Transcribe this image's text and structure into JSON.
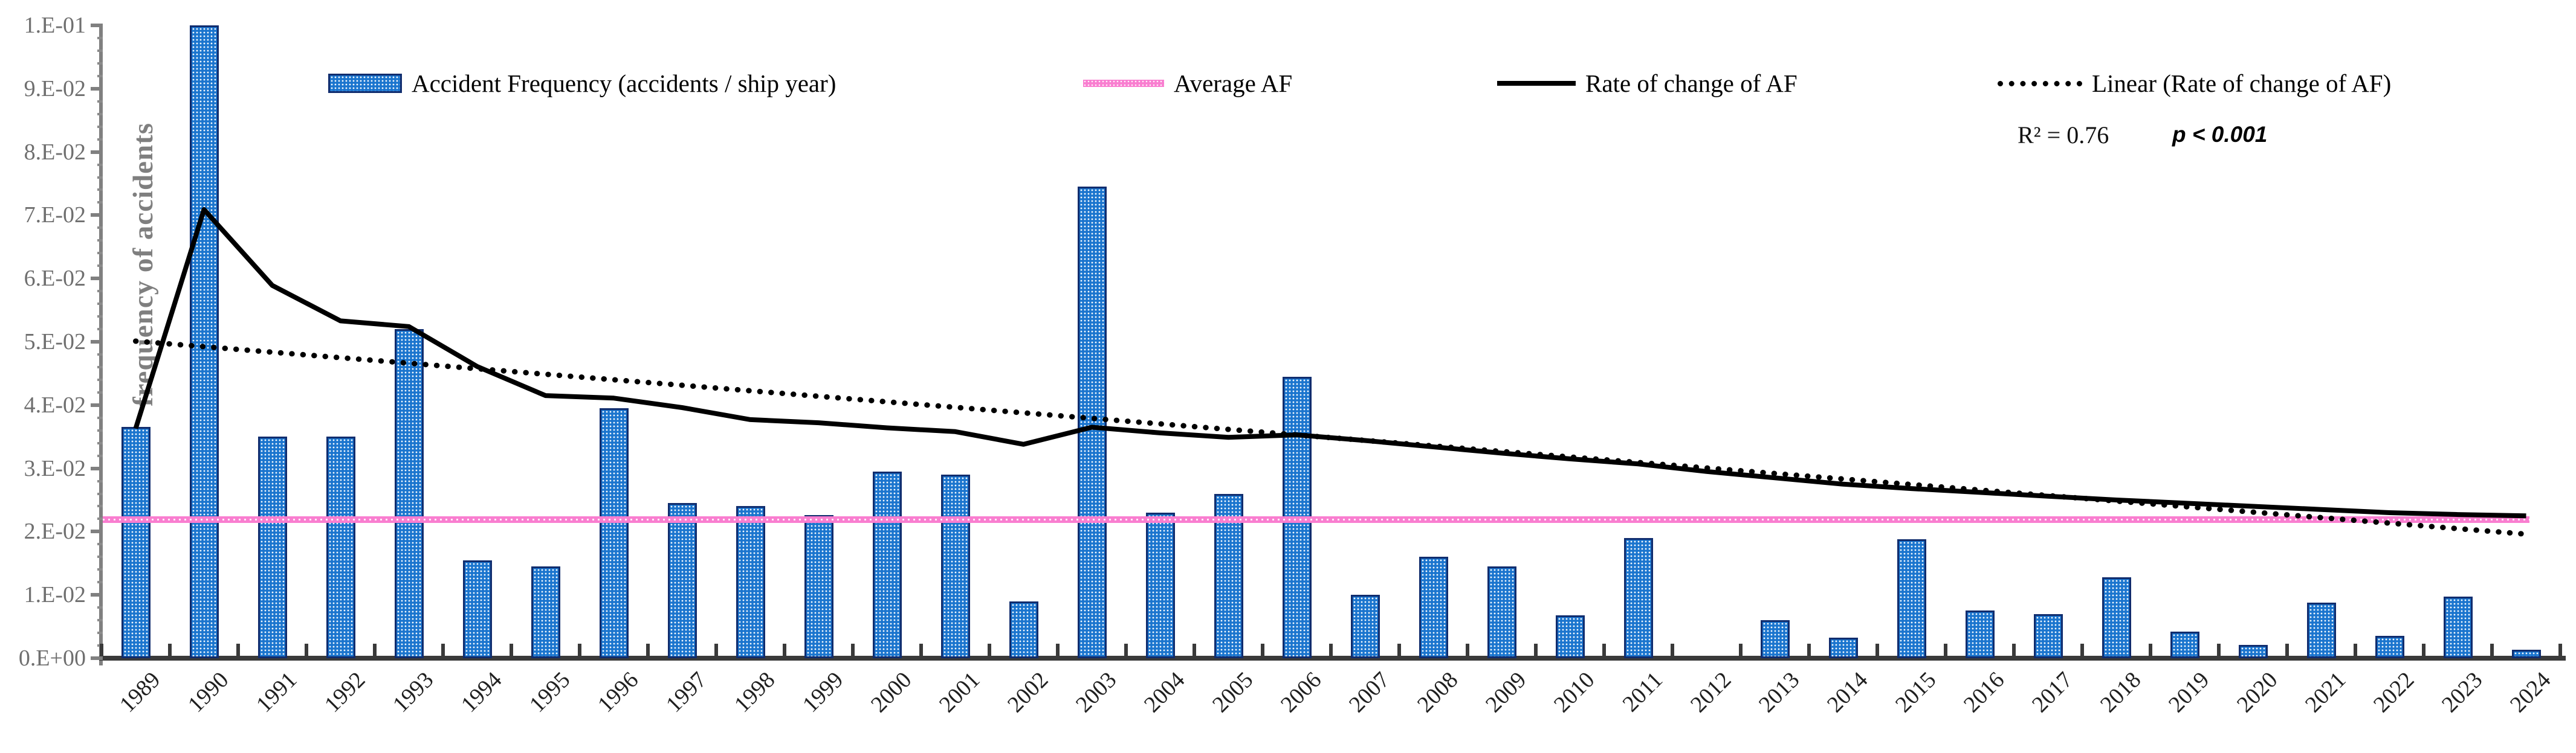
{
  "chart_data": {
    "type": "bar+line",
    "title": "",
    "ylabel": "frequency of accidents",
    "xlabel": "",
    "ylim": [
      0,
      0.1
    ],
    "y_tick_labels": [
      "1.E-01",
      "9.E-02",
      "8.E-02",
      "7.E-02",
      "6.E-02",
      "5.E-02",
      "4.E-02",
      "3.E-02",
      "2.E-02",
      "1.E-02",
      "0.E+00"
    ],
    "y_major_step": 0.01,
    "y_minor_step": 0.002,
    "grid": "off",
    "legend_position": "top",
    "categories": [
      1989,
      1990,
      1991,
      1992,
      1993,
      1994,
      1995,
      1996,
      1997,
      1998,
      1999,
      2000,
      2001,
      2002,
      2003,
      2004,
      2005,
      2006,
      2007,
      2008,
      2009,
      2010,
      2011,
      2012,
      2013,
      2014,
      2015,
      2016,
      2017,
      2018,
      2019,
      2020,
      2021,
      2022,
      2023,
      2024
    ],
    "series": [
      {
        "name": "Accident Frequency (accidents / ship year)",
        "type": "bar",
        "color": "#1b75ce",
        "border_color": "#112d6e",
        "values": [
          0.0365,
          0.1,
          0.035,
          0.035,
          0.052,
          0.0155,
          0.0145,
          0.0395,
          0.0245,
          0.024,
          0.0226,
          0.0295,
          0.029,
          0.009,
          0.0745,
          0.023,
          0.026,
          0.0445,
          0.01,
          0.016,
          0.0145,
          0.0068,
          0.019,
          0,
          0.006,
          0.0032,
          0.0188,
          0.0075,
          0.007,
          0.0128,
          0.0042,
          0.0021,
          0.0088,
          0.0035,
          0.0097,
          0.0013
        ]
      },
      {
        "name": "Average AF",
        "type": "line",
        "color": "#f97ed0",
        "value": 0.0219
      },
      {
        "name": "Rate of change of AF",
        "type": "line",
        "color": "#000000",
        "values": [
          0.0363,
          0.0709,
          0.0589,
          0.0533,
          0.0524,
          0.0461,
          0.0415,
          0.0411,
          0.0396,
          0.0377,
          0.0372,
          0.0364,
          0.0358,
          0.0338,
          0.0365,
          0.0356,
          0.0349,
          0.0353,
          0.0344,
          0.0334,
          0.0324,
          0.0315,
          0.0307,
          0.0295,
          0.0285,
          0.0275,
          0.0268,
          0.0262,
          0.0256,
          0.025,
          0.0245,
          0.024,
          0.0235,
          0.023,
          0.0227,
          0.0225
        ]
      },
      {
        "name": "Linear (Rate of change of AF)",
        "type": "trendline",
        "style": "dotted",
        "color": "#000000",
        "endpoints": [
          0.0501,
          0.0196
        ]
      }
    ],
    "annotations": {
      "r_squared": "R² = 0.76",
      "p_value": "p < 0.001"
    }
  }
}
